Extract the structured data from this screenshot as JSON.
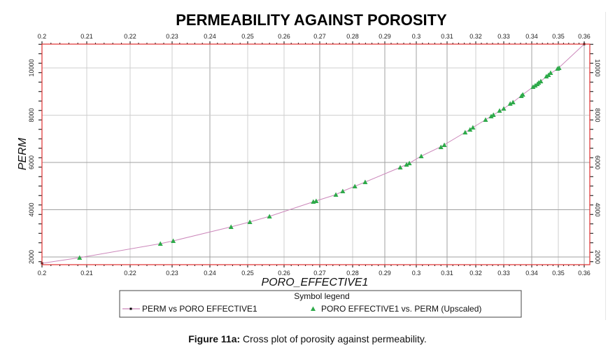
{
  "chart_data": {
    "type": "scatter",
    "title": "PERMEABILITY AGAINST POROSITY",
    "xlabel": "PORO_EFFECTIVE1",
    "ylabel": "PERM",
    "xlim": [
      0.2,
      0.36
    ],
    "ylim": [
      1670,
      11000
    ],
    "x_ticks": [
      "0.2",
      "0.21",
      "0.22",
      "0.23",
      "0.24",
      "0.25",
      "0.26",
      "0.27",
      "0.28",
      "0.29",
      "0.3",
      "0.31",
      "0.32",
      "0.33",
      "0.34",
      "0.35",
      "0.36"
    ],
    "y_ticks": [
      "2000",
      "4000",
      "6000",
      "8000",
      "10000"
    ],
    "x_axis_scale_note": "non-uniform (compressed toward higher porosity)",
    "grid": true,
    "legend_title": "Symbol legend",
    "legend_position": "bottom",
    "series": [
      {
        "name": "PERM vs PORO EFFECTIVE1",
        "kind": "line",
        "color": "#cc88bb",
        "marker_color": "#000000",
        "x": [
          0.2,
          0.2084,
          0.2272,
          0.2303,
          0.2456,
          0.2506,
          0.256,
          0.2686,
          0.2749,
          0.277,
          0.2807,
          0.2839,
          0.2949,
          0.2978,
          0.3016,
          0.3085,
          0.3163,
          0.319,
          0.3235,
          0.3263,
          0.33,
          0.3333,
          0.3368,
          0.3413,
          0.3434,
          0.3463,
          0.35,
          0.36
        ],
        "y": [
          1733,
          1970,
          2563,
          2681,
          3274,
          3481,
          3719,
          4355,
          4637,
          4785,
          4993,
          5170,
          5793,
          5970,
          6267,
          6700,
          7274,
          7481,
          7807,
          8015,
          8281,
          8548,
          8874,
          9259,
          9437,
          9704,
          9985,
          11007
        ]
      },
      {
        "name": "PORO EFFECTIVE1 vs. PERM (Upscaled)",
        "kind": "scatter",
        "marker": "triangle",
        "color": "#2eaa4a",
        "x": [
          0.2084,
          0.2272,
          0.2303,
          0.2456,
          0.2506,
          0.256,
          0.2682,
          0.269,
          0.2749,
          0.277,
          0.2807,
          0.2839,
          0.2949,
          0.2969,
          0.2978,
          0.3016,
          0.308,
          0.3091,
          0.3163,
          0.318,
          0.319,
          0.3235,
          0.3255,
          0.3263,
          0.3285,
          0.33,
          0.3323,
          0.3333,
          0.3363,
          0.3368,
          0.3405,
          0.3413,
          0.3421,
          0.3426,
          0.3434,
          0.3455,
          0.3463,
          0.3471,
          0.3497,
          0.3503
        ],
        "y": [
          1970,
          2563,
          2681,
          3274,
          3481,
          3719,
          4341,
          4370,
          4637,
          4785,
          4993,
          5170,
          5793,
          5911,
          5970,
          6267,
          6652,
          6741,
          7274,
          7393,
          7481,
          7807,
          7956,
          8015,
          8193,
          8281,
          8489,
          8548,
          8815,
          8874,
          9200,
          9259,
          9319,
          9378,
          9437,
          9644,
          9704,
          9793,
          9970,
          10000
        ]
      }
    ]
  },
  "legend": {
    "title": "Symbol legend",
    "items": [
      {
        "label": "PERM  vs  PORO  EFFECTIVE1",
        "symbol": "line-with-square"
      },
      {
        "label": "PORO  EFFECTIVE1 vs. PERM (Upscaled)",
        "symbol": "triangle"
      }
    ]
  },
  "caption": {
    "label": "Figure 11a:",
    "text": " Cross plot of porosity against permeability."
  }
}
